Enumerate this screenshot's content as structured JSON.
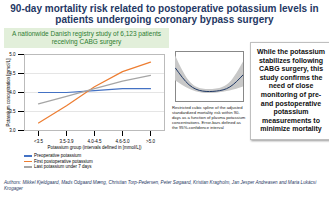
{
  "title": "90-day mortality risk related to postoperative potassium levels in patients undergoing coronary bypass surgery",
  "subtitle": "A nationwide Danish registry study of 6,123 patients receiving CABG surgery",
  "chart_data": [
    {
      "type": "line",
      "x_label": "Potassium group (intervals defined in [mmol/L])",
      "y_label": "Potassium concentration [mmol/L]",
      "categories": [
        "<3.5",
        "3.5-3.9",
        "4.0-4.5",
        "4.6-5.0",
        ">5.0"
      ],
      "series": [
        {
          "name": "Preoperative potassium",
          "color": "#4472c4",
          "values": [
            4.0,
            4.0,
            4.05,
            4.1,
            4.1
          ]
        },
        {
          "name": "First postoperative potassium",
          "color": "#ed7d31",
          "values": [
            3.2,
            3.65,
            4.15,
            4.55,
            4.8
          ]
        },
        {
          "name": "Last potassium under 7 days",
          "color": "#a5a5a5",
          "values": [
            3.7,
            3.9,
            4.1,
            4.3,
            4.45
          ]
        }
      ],
      "ylim": [
        3,
        5
      ],
      "yticks": [
        {
          "value": 3,
          "label": "3.0"
        },
        {
          "value": 3.5,
          "label": "3.5"
        },
        {
          "value": 4,
          "label": "4.0"
        },
        {
          "value": 4.5,
          "label": "4.5"
        },
        {
          "value": 5,
          "label": "5.0"
        }
      ],
      "legend": "bottom"
    },
    {
      "type": "line",
      "caption": "Restricted cubic spline of the adjusted standardized mortality risk within 90-days as a function of plasma potassium concentrations. Error-bars defined as the 95%-confidence interval",
      "x": [
        3.0,
        3.5,
        4.0,
        4.5,
        5.0,
        5.5
      ],
      "values": [
        0.08,
        0.04,
        0.025,
        0.025,
        0.035,
        0.065
      ],
      "lower": [
        0.05,
        0.03,
        0.02,
        0.02,
        0.025,
        0.035
      ],
      "upper": [
        0.11,
        0.05,
        0.03,
        0.03,
        0.045,
        0.095
      ],
      "color": "#1f3864",
      "xlim": [
        3.0,
        5.5
      ],
      "ylim": [
        0,
        0.12
      ],
      "tick_labels": false
    }
  ],
  "conclusion": "While the potassium stabilizes following CABG surgery, this study confirms the need of close monitoring of pre- and postoperative potassium measurements to minimize mortality",
  "authors": "Authors: Mikkel Kjeldgaard, Mads Odgaard Mæng, Christian Torp-Pedersen, Peter Søgaard, Kristian Kragholm, Jan Jesper Andreasen and Maria Lukácsi Krogager"
}
